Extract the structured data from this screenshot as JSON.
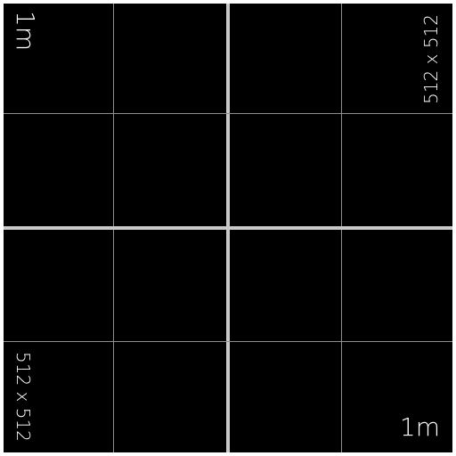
{
  "grid": {
    "scale_label_top": "1m",
    "scale_label_bottom": "1m",
    "size_label_top": "512 x 512",
    "size_label_bottom": "512 x 512"
  }
}
